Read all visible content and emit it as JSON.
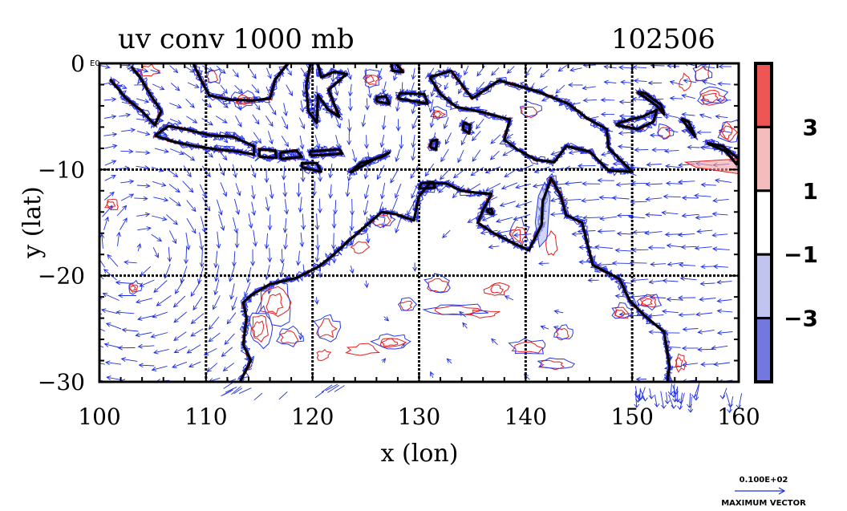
{
  "chart_data": {
    "type": "vector_contour_map",
    "title": "uv conv 1000 mb",
    "run_id": "102506",
    "xlabel": "x (lon)",
    "ylabel": "y (lat)",
    "xlim": [
      100,
      160
    ],
    "ylim": [
      -30,
      0
    ],
    "x_ticks": [
      100,
      110,
      120,
      130,
      140,
      150,
      160
    ],
    "x_tick_labels": [
      "100",
      "110",
      "120",
      "130",
      "140",
      "150",
      "160"
    ],
    "y_ticks": [
      0,
      -10,
      -20,
      -30
    ],
    "y_tick_labels": [
      "0",
      "−10",
      "−20",
      "−30"
    ],
    "origin_label": "E0",
    "gridlines": [
      110,
      120,
      130,
      140,
      150,
      -10,
      -20
    ],
    "colorbar": {
      "colors": [
        "#ee5555",
        "#f4bcbc",
        "#ffffff",
        "#c0c4ee",
        "#7278dd"
      ],
      "labels": [
        "3",
        "1",
        "−1",
        "−3"
      ]
    },
    "vector_key": {
      "value": "0.100E+02",
      "label": "MAXIMUM VECTOR"
    },
    "colors": {
      "coast": "#000000",
      "vectors": "#1f2fe0",
      "positive_contour": "#e81c1c",
      "negative_contour": "#2a36e8"
    },
    "coastlines": [
      {
        "name": "west-australia",
        "points": [
          [
            113.2,
            -30
          ],
          [
            114.2,
            -28
          ],
          [
            113.5,
            -26.5
          ],
          [
            113.8,
            -24
          ],
          [
            113.5,
            -22.5
          ],
          [
            114.3,
            -21.8
          ],
          [
            116,
            -20.8
          ],
          [
            118.5,
            -20.2
          ],
          [
            120.5,
            -19.2
          ],
          [
            122,
            -18
          ],
          [
            123.3,
            -16.8
          ],
          [
            125,
            -15.3
          ],
          [
            126.5,
            -14
          ],
          [
            127.8,
            -14.2
          ],
          [
            129.5,
            -14.8
          ],
          [
            130,
            -12.5
          ],
          [
            131,
            -11.3
          ],
          [
            132.5,
            -11.3
          ],
          [
            134,
            -12
          ],
          [
            135.5,
            -12.2
          ],
          [
            136.8,
            -12.3
          ],
          [
            136,
            -13.8
          ],
          [
            135.5,
            -15
          ],
          [
            137,
            -16
          ],
          [
            139,
            -17
          ],
          [
            140.3,
            -17.6
          ],
          [
            141.5,
            -15.2
          ],
          [
            141.6,
            -13
          ],
          [
            142.4,
            -10.8
          ],
          [
            143.3,
            -12.5
          ],
          [
            143.8,
            -14.3
          ],
          [
            145.3,
            -15
          ],
          [
            145.8,
            -17
          ],
          [
            146.3,
            -19
          ],
          [
            148.8,
            -20.3
          ],
          [
            149.8,
            -22.4
          ],
          [
            151.2,
            -23.8
          ],
          [
            153,
            -25.3
          ],
          [
            153.5,
            -28.5
          ],
          [
            153.3,
            -30
          ]
        ]
      },
      {
        "name": "new-guinea",
        "points": [
          [
            131,
            -1.3
          ],
          [
            133,
            -0.7
          ],
          [
            135,
            -3.3
          ],
          [
            137.5,
            -1.6
          ],
          [
            141,
            -2.6
          ],
          [
            144,
            -3.8
          ],
          [
            145.8,
            -5.2
          ],
          [
            147.6,
            -6.2
          ],
          [
            147.8,
            -8
          ],
          [
            150,
            -10.2
          ],
          [
            147.8,
            -10.1
          ],
          [
            146,
            -8.3
          ],
          [
            143.8,
            -7.8
          ],
          [
            142.7,
            -9.3
          ],
          [
            141,
            -9.1
          ],
          [
            139.2,
            -8.1
          ],
          [
            138,
            -7.2
          ],
          [
            138.5,
            -5.3
          ],
          [
            136,
            -4.6
          ],
          [
            133.5,
            -4.1
          ],
          [
            132,
            -2.9
          ],
          [
            131,
            -1.3
          ]
        ]
      },
      {
        "name": "java",
        "points": [
          [
            105.2,
            -6.8
          ],
          [
            107,
            -7.4
          ],
          [
            109,
            -7.8
          ],
          [
            111,
            -8.1
          ],
          [
            113,
            -8.3
          ],
          [
            114.5,
            -8.6
          ],
          [
            114.5,
            -7.8
          ],
          [
            112.5,
            -6.9
          ],
          [
            110.5,
            -6.8
          ],
          [
            108.5,
            -6.3
          ],
          [
            106.5,
            -5.9
          ],
          [
            105.2,
            -6.8
          ]
        ]
      },
      {
        "name": "bali-lombok",
        "points": [
          [
            115,
            -8.8
          ],
          [
            116.6,
            -8.9
          ],
          [
            116.5,
            -8.2
          ],
          [
            115,
            -8.1
          ],
          [
            115,
            -8.8
          ]
        ]
      },
      {
        "name": "sumbawa",
        "points": [
          [
            117,
            -9
          ],
          [
            119,
            -8.8
          ],
          [
            118.5,
            -8.2
          ],
          [
            117,
            -8.4
          ],
          [
            117,
            -9
          ]
        ]
      },
      {
        "name": "flores",
        "points": [
          [
            119.8,
            -8.7
          ],
          [
            122.8,
            -8.5
          ],
          [
            122.5,
            -8.1
          ],
          [
            119.8,
            -8.3
          ],
          [
            119.8,
            -8.7
          ]
        ]
      },
      {
        "name": "timor",
        "points": [
          [
            123.5,
            -10.3
          ],
          [
            125.5,
            -9.2
          ],
          [
            127.2,
            -8.4
          ],
          [
            126.5,
            -8.8
          ],
          [
            124.5,
            -9.4
          ],
          [
            123.5,
            -10.3
          ]
        ]
      },
      {
        "name": "sumba",
        "points": [
          [
            119,
            -9.8
          ],
          [
            120.8,
            -10.2
          ],
          [
            120.4,
            -9.4
          ],
          [
            119,
            -9.4
          ],
          [
            119,
            -9.8
          ]
        ]
      },
      {
        "name": "sumatra-tip",
        "points": [
          [
            101,
            -1.5
          ],
          [
            102.5,
            -3.3
          ],
          [
            104,
            -4.5
          ],
          [
            105.2,
            -5.8
          ],
          [
            105.8,
            -4.5
          ],
          [
            104.8,
            -3
          ],
          [
            103.8,
            -1.3
          ],
          [
            103,
            -0.3
          ]
        ]
      },
      {
        "name": "borneo-south",
        "points": [
          [
            108.8,
            0
          ],
          [
            109.5,
            -1.5
          ],
          [
            110.3,
            -3
          ],
          [
            112,
            -3.4
          ],
          [
            114.3,
            -3.5
          ],
          [
            116,
            -3.3
          ],
          [
            116.5,
            -1.5
          ],
          [
            117.7,
            0
          ]
        ]
      },
      {
        "name": "sulawesi",
        "points": [
          [
            119.8,
            0
          ],
          [
            119.4,
            -2.2
          ],
          [
            119.6,
            -4.5
          ],
          [
            120.4,
            -5.6
          ],
          [
            120.5,
            -3
          ],
          [
            121.5,
            -4.4
          ],
          [
            122.5,
            -5
          ],
          [
            121.5,
            -2.5
          ],
          [
            123.2,
            -1
          ],
          [
            122,
            -0.8
          ],
          [
            120.8,
            -1.3
          ],
          [
            120.5,
            0
          ]
        ]
      },
      {
        "name": "buru",
        "points": [
          [
            126,
            -3.6
          ],
          [
            127.2,
            -3.8
          ],
          [
            126.9,
            -3.1
          ],
          [
            126,
            -3.2
          ],
          [
            126,
            -3.6
          ]
        ]
      },
      {
        "name": "seram",
        "points": [
          [
            128,
            -3.3
          ],
          [
            130.8,
            -3.8
          ],
          [
            130.5,
            -2.9
          ],
          [
            128.2,
            -2.8
          ],
          [
            128,
            -3.3
          ]
        ]
      },
      {
        "name": "halmahera",
        "points": [
          [
            127.8,
            0
          ],
          [
            128.5,
            -0.8
          ],
          [
            127.5,
            -0.7
          ],
          [
            127.4,
            0
          ]
        ]
      },
      {
        "name": "aru",
        "points": [
          [
            134.1,
            -6.2
          ],
          [
            134.7,
            -6.6
          ],
          [
            134.8,
            -5.8
          ],
          [
            134.2,
            -5.6
          ],
          [
            134.1,
            -6.2
          ]
        ]
      },
      {
        "name": "tanimbar",
        "points": [
          [
            131,
            -7.9
          ],
          [
            131.6,
            -8.1
          ],
          [
            131.7,
            -7.2
          ],
          [
            131.2,
            -7.3
          ],
          [
            131,
            -7.9
          ]
        ]
      },
      {
        "name": "new-britain",
        "points": [
          [
            148.5,
            -5.8
          ],
          [
            150.5,
            -6.2
          ],
          [
            152,
            -5.5
          ],
          [
            152.3,
            -4.4
          ],
          [
            151,
            -5
          ],
          [
            149,
            -5.5
          ],
          [
            148.5,
            -5.8
          ]
        ]
      },
      {
        "name": "new-ireland",
        "points": [
          [
            150.5,
            -2.7
          ],
          [
            152.3,
            -4
          ],
          [
            153,
            -4.8
          ],
          [
            152.7,
            -3.9
          ],
          [
            151.2,
            -2.8
          ],
          [
            150.5,
            -2.7
          ]
        ]
      },
      {
        "name": "bougainville",
        "points": [
          [
            154.6,
            -5.2
          ],
          [
            155.9,
            -6.9
          ],
          [
            155.3,
            -5.5
          ],
          [
            154.6,
            -5.2
          ]
        ]
      },
      {
        "name": "solomons",
        "points": [
          [
            157,
            -7.5
          ],
          [
            158.8,
            -8.3
          ],
          [
            159.8,
            -9.5
          ],
          [
            160,
            -9
          ],
          [
            158.5,
            -7.8
          ],
          [
            157,
            -7.5
          ]
        ]
      },
      {
        "name": "melville",
        "points": [
          [
            130,
            -11.8
          ],
          [
            131.5,
            -11.7
          ],
          [
            131.3,
            -11.2
          ],
          [
            130.2,
            -11.3
          ],
          [
            130,
            -11.8
          ]
        ]
      },
      {
        "name": "groote",
        "points": [
          [
            136.4,
            -14
          ],
          [
            136.9,
            -14.2
          ],
          [
            136.8,
            -13.7
          ],
          [
            136.4,
            -13.8
          ],
          [
            136.4,
            -14
          ]
        ]
      }
    ]
  }
}
